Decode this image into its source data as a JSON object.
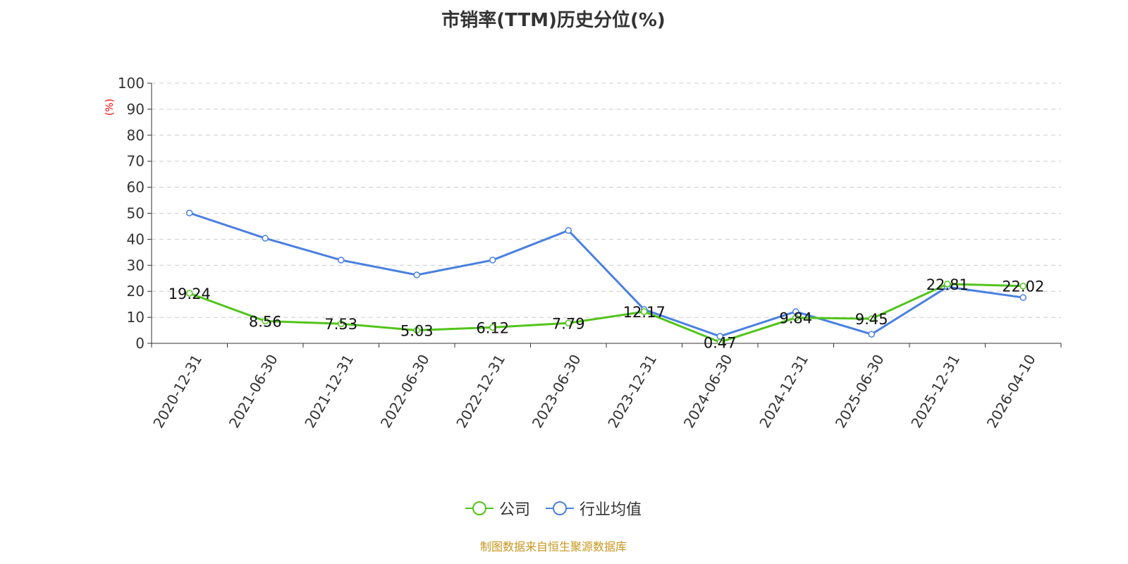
{
  "chart_data": {
    "type": "line",
    "title": "市销率(TTM)历史分位(%)",
    "ylabel": "(%)",
    "ylim": [
      0,
      100
    ],
    "yticks": [
      0,
      10,
      20,
      30,
      40,
      50,
      60,
      70,
      80,
      90,
      100
    ],
    "grid": true,
    "legend_position": "bottom",
    "categories": [
      "2020-12-31",
      "2021-06-30",
      "2021-12-31",
      "2022-06-30",
      "2022-12-31",
      "2023-06-30",
      "2023-12-31",
      "2024-06-30",
      "2024-12-31",
      "2025-06-30",
      "2025-12-31",
      "2026-04-10"
    ],
    "series": [
      {
        "name": "公司",
        "color": "#52c41a",
        "labeled": true,
        "values": [
          19.24,
          8.56,
          7.53,
          5.03,
          6.12,
          7.79,
          12.17,
          0.47,
          9.84,
          9.45,
          22.81,
          22.02
        ]
      },
      {
        "name": "行业均值",
        "color": "#4a80e0",
        "labeled": false,
        "values": [
          50.1,
          40.4,
          32.0,
          26.3,
          32.0,
          43.4,
          13.0,
          2.7,
          12.2,
          3.5,
          21.7,
          17.6
        ]
      }
    ]
  },
  "footer": "制图数据来自恒生聚源数据库"
}
